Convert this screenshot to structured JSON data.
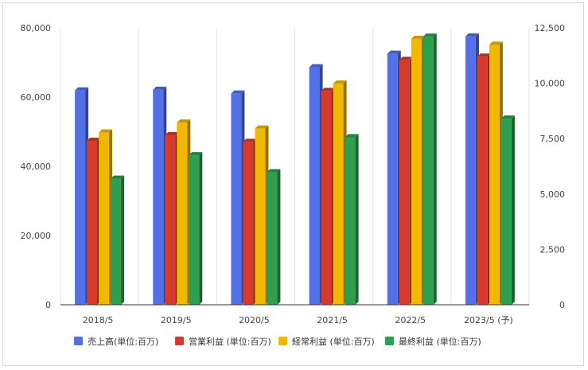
{
  "chart_data": {
    "type": "bar",
    "categories": [
      "2018/5",
      "2019/5",
      "2020/5",
      "2021/5",
      "2022/5",
      "2023/5 (予)"
    ],
    "series": [
      {
        "name": "売上高(単位:百万)",
        "axis": "left",
        "color": "#5470e8",
        "values": [
          61900,
          62100,
          61000,
          68600,
          72500,
          77500
        ]
      },
      {
        "name": "営業利益 (単位:百万)",
        "axis": "right",
        "color": "#d63a2f",
        "values": [
          7400,
          7650,
          7350,
          9650,
          11050,
          11200
        ]
      },
      {
        "name": "経常利益 (単位:百万)",
        "axis": "right",
        "color": "#f0b800",
        "values": [
          7770,
          8220,
          7950,
          9980,
          12000,
          11730
        ]
      },
      {
        "name": "最終利益 (単位:百万)",
        "axis": "right",
        "color": "#2e9e4f",
        "values": [
          5690,
          6750,
          5980,
          7560,
          12100,
          8400
        ]
      }
    ],
    "y_left": {
      "min": 0,
      "max": 80000,
      "ticks": [
        "0",
        "20,000",
        "40,000",
        "60,000",
        "80,000"
      ]
    },
    "y_right": {
      "min": 0,
      "max": 12500,
      "ticks": [
        "0",
        "2,500",
        "5,000",
        "7,500",
        "10,000",
        "12,500"
      ]
    },
    "grid": "vertical",
    "legend_position": "bottom",
    "title": "",
    "xlabel": "",
    "ylabel": ""
  }
}
